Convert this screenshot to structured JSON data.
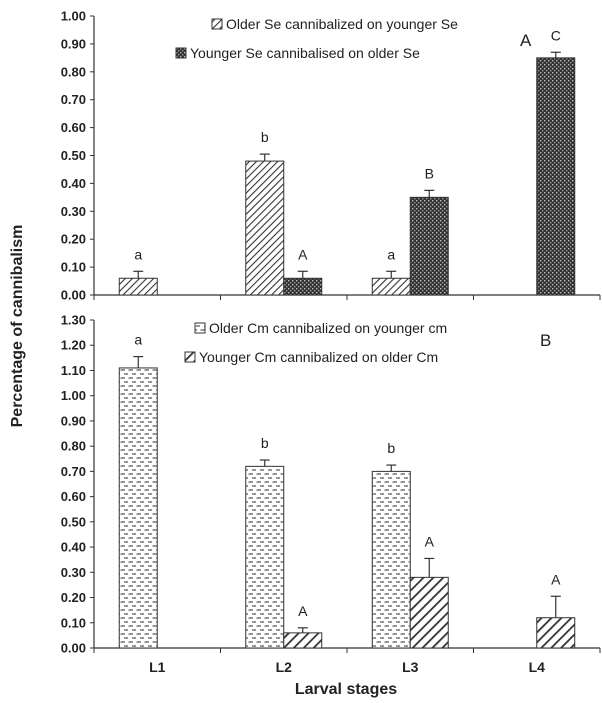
{
  "chart_data": [
    {
      "panel": "A",
      "type": "bar",
      "categories": [
        "L1",
        "L2",
        "L3",
        "L4"
      ],
      "ylim": [
        0,
        1.0
      ],
      "yticks": [
        "0.00",
        "0.10",
        "0.20",
        "0.30",
        "0.40",
        "0.50",
        "0.60",
        "0.70",
        "0.80",
        "0.90",
        "1.00"
      ],
      "ylabel": "Percentage of cannibalism",
      "legend_position": "top-center",
      "series": [
        {
          "name": "Older Se cannibalized on younger Se",
          "pattern": "diagonal-hatch",
          "values": [
            0.06,
            0.48,
            0.06,
            null
          ],
          "errors": [
            0.025,
            0.025,
            0.025,
            null
          ],
          "letters": [
            "a",
            "b",
            "a",
            ""
          ]
        },
        {
          "name": "Younger Se cannibalised on older Se",
          "pattern": "dark-crosshatch",
          "values": [
            null,
            0.06,
            0.35,
            0.85
          ],
          "errors": [
            null,
            0.025,
            0.025,
            0.02
          ],
          "letters": [
            "",
            "A",
            "B",
            "C"
          ]
        }
      ]
    },
    {
      "panel": "B",
      "type": "bar",
      "categories": [
        "L1",
        "L2",
        "L3",
        "L4"
      ],
      "ylim": [
        0,
        1.3
      ],
      "yticks": [
        "0.00",
        "0.10",
        "0.20",
        "0.30",
        "0.40",
        "0.50",
        "0.60",
        "0.70",
        "0.80",
        "0.90",
        "1.00",
        "1.10",
        "1.20",
        "1.30"
      ],
      "xlabel": "Larval stages",
      "legend_position": "top-center",
      "series": [
        {
          "name": "Older Cm cannibalized on younger cm",
          "pattern": "dashed-dots",
          "values": [
            1.11,
            0.72,
            0.7,
            null
          ],
          "errors": [
            0.045,
            0.025,
            0.025,
            null
          ],
          "letters": [
            "a",
            "b",
            "b",
            ""
          ]
        },
        {
          "name": "Younger Cm cannibalized on older Cm",
          "pattern": "wide-diagonal",
          "values": [
            null,
            0.06,
            0.28,
            0.12
          ],
          "errors": [
            null,
            0.02,
            0.075,
            0.085
          ],
          "letters": [
            "",
            "A",
            "A",
            "A"
          ]
        }
      ]
    }
  ]
}
